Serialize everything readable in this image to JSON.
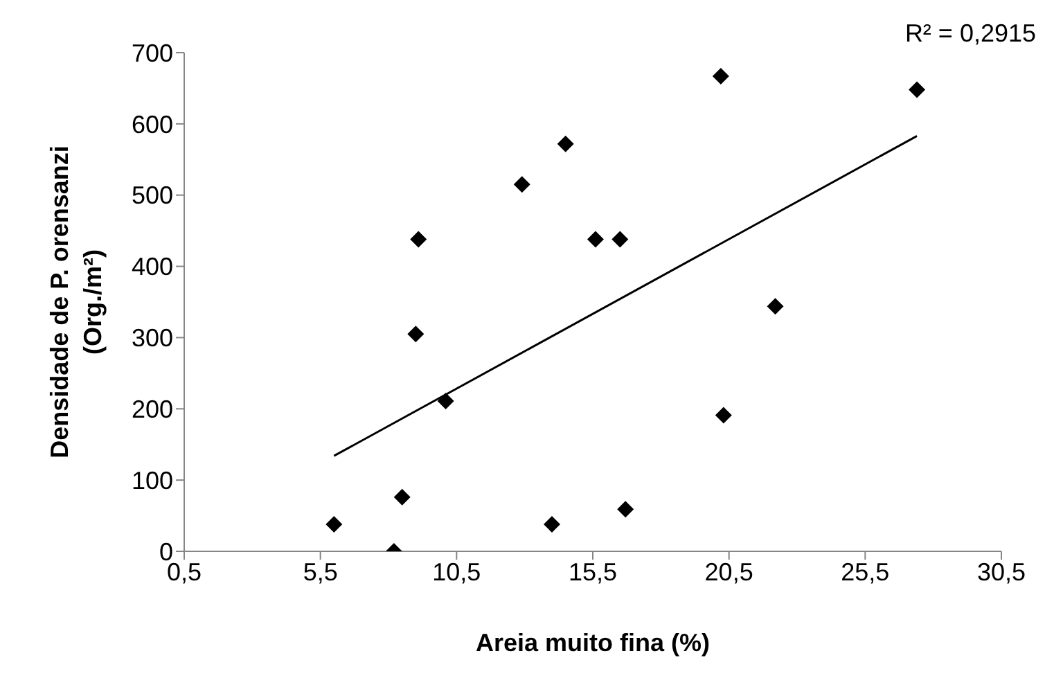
{
  "chart_data": {
    "type": "scatter",
    "xlabel": "Areia muito fina (%)",
    "ylabel": "Densidade de P. orensanzi (Org./m²)",
    "annotations": [
      "R² = 0,2915"
    ],
    "xlim": [
      0.5,
      30.5
    ],
    "xticks": [
      {
        "value": 0.5,
        "label": "0,5"
      },
      {
        "value": 5.5,
        "label": "5,5"
      },
      {
        "value": 10.5,
        "label": "10,5"
      },
      {
        "value": 15.5,
        "label": "15,5"
      },
      {
        "value": 20.5,
        "label": "20,5"
      },
      {
        "value": 25.5,
        "label": "25,5"
      },
      {
        "value": 30.5,
        "label": "30,5"
      }
    ],
    "ylim": [
      0,
      700
    ],
    "yticks": [
      0,
      100,
      200,
      300,
      400,
      500,
      600,
      700
    ],
    "grid": false,
    "marker": "diamond",
    "series": [
      {
        "color": "#000000",
        "x": [
          6.0,
          8.2,
          8.5,
          9.0,
          9.1,
          10.1,
          12.9,
          14.0,
          14.5,
          15.6,
          16.5,
          16.7,
          20.2,
          20.3,
          22.2,
          27.4
        ],
        "values": [
          38,
          0,
          76,
          305,
          438,
          211,
          515,
          38,
          572,
          438,
          438,
          59,
          667,
          191,
          344,
          648
        ]
      },
      {
        "type": "line",
        "color": "#000000",
        "marker": "none",
        "x": [
          6.0,
          27.4
        ],
        "values": [
          134,
          583
        ]
      }
    ]
  }
}
